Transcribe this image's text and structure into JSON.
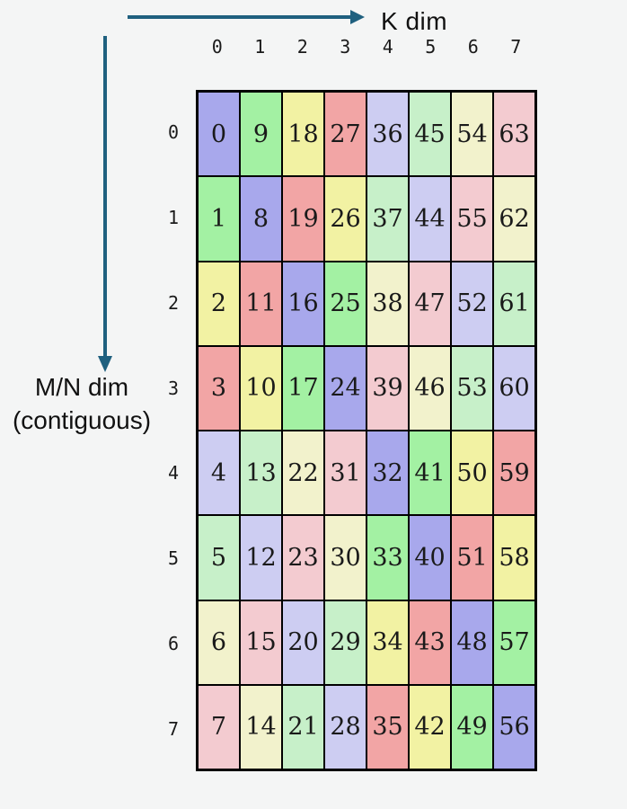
{
  "axes": {
    "k_arrow_label": "K dim",
    "mn_arrow_label_line1": "M/N dim",
    "mn_arrow_label_line2": "(contiguous)",
    "arrow_color": "#1f607f"
  },
  "matrix": {
    "col_headers": [
      "0",
      "1",
      "2",
      "3",
      "4",
      "5",
      "6",
      "7"
    ],
    "row_headers": [
      "0",
      "1",
      "2",
      "3",
      "4",
      "5",
      "6",
      "7"
    ],
    "rows": [
      [
        0,
        9,
        18,
        27,
        36,
        45,
        54,
        63
      ],
      [
        1,
        8,
        19,
        26,
        37,
        44,
        55,
        62
      ],
      [
        2,
        11,
        16,
        25,
        38,
        47,
        52,
        61
      ],
      [
        3,
        10,
        17,
        24,
        39,
        46,
        53,
        60
      ],
      [
        4,
        13,
        22,
        31,
        32,
        41,
        50,
        59
      ],
      [
        5,
        12,
        23,
        30,
        33,
        40,
        51,
        58
      ],
      [
        6,
        15,
        20,
        29,
        34,
        43,
        48,
        57
      ],
      [
        7,
        14,
        21,
        28,
        35,
        42,
        49,
        56
      ]
    ],
    "cell_color_rule": "value_mod_8",
    "palette": [
      "#a8a8ec",
      "#a3f1a3",
      "#f2f2a3",
      "#f2a5a5",
      "#cdcdf2",
      "#c7f0c9",
      "#f2f2cc",
      "#f3cbd0"
    ]
  }
}
